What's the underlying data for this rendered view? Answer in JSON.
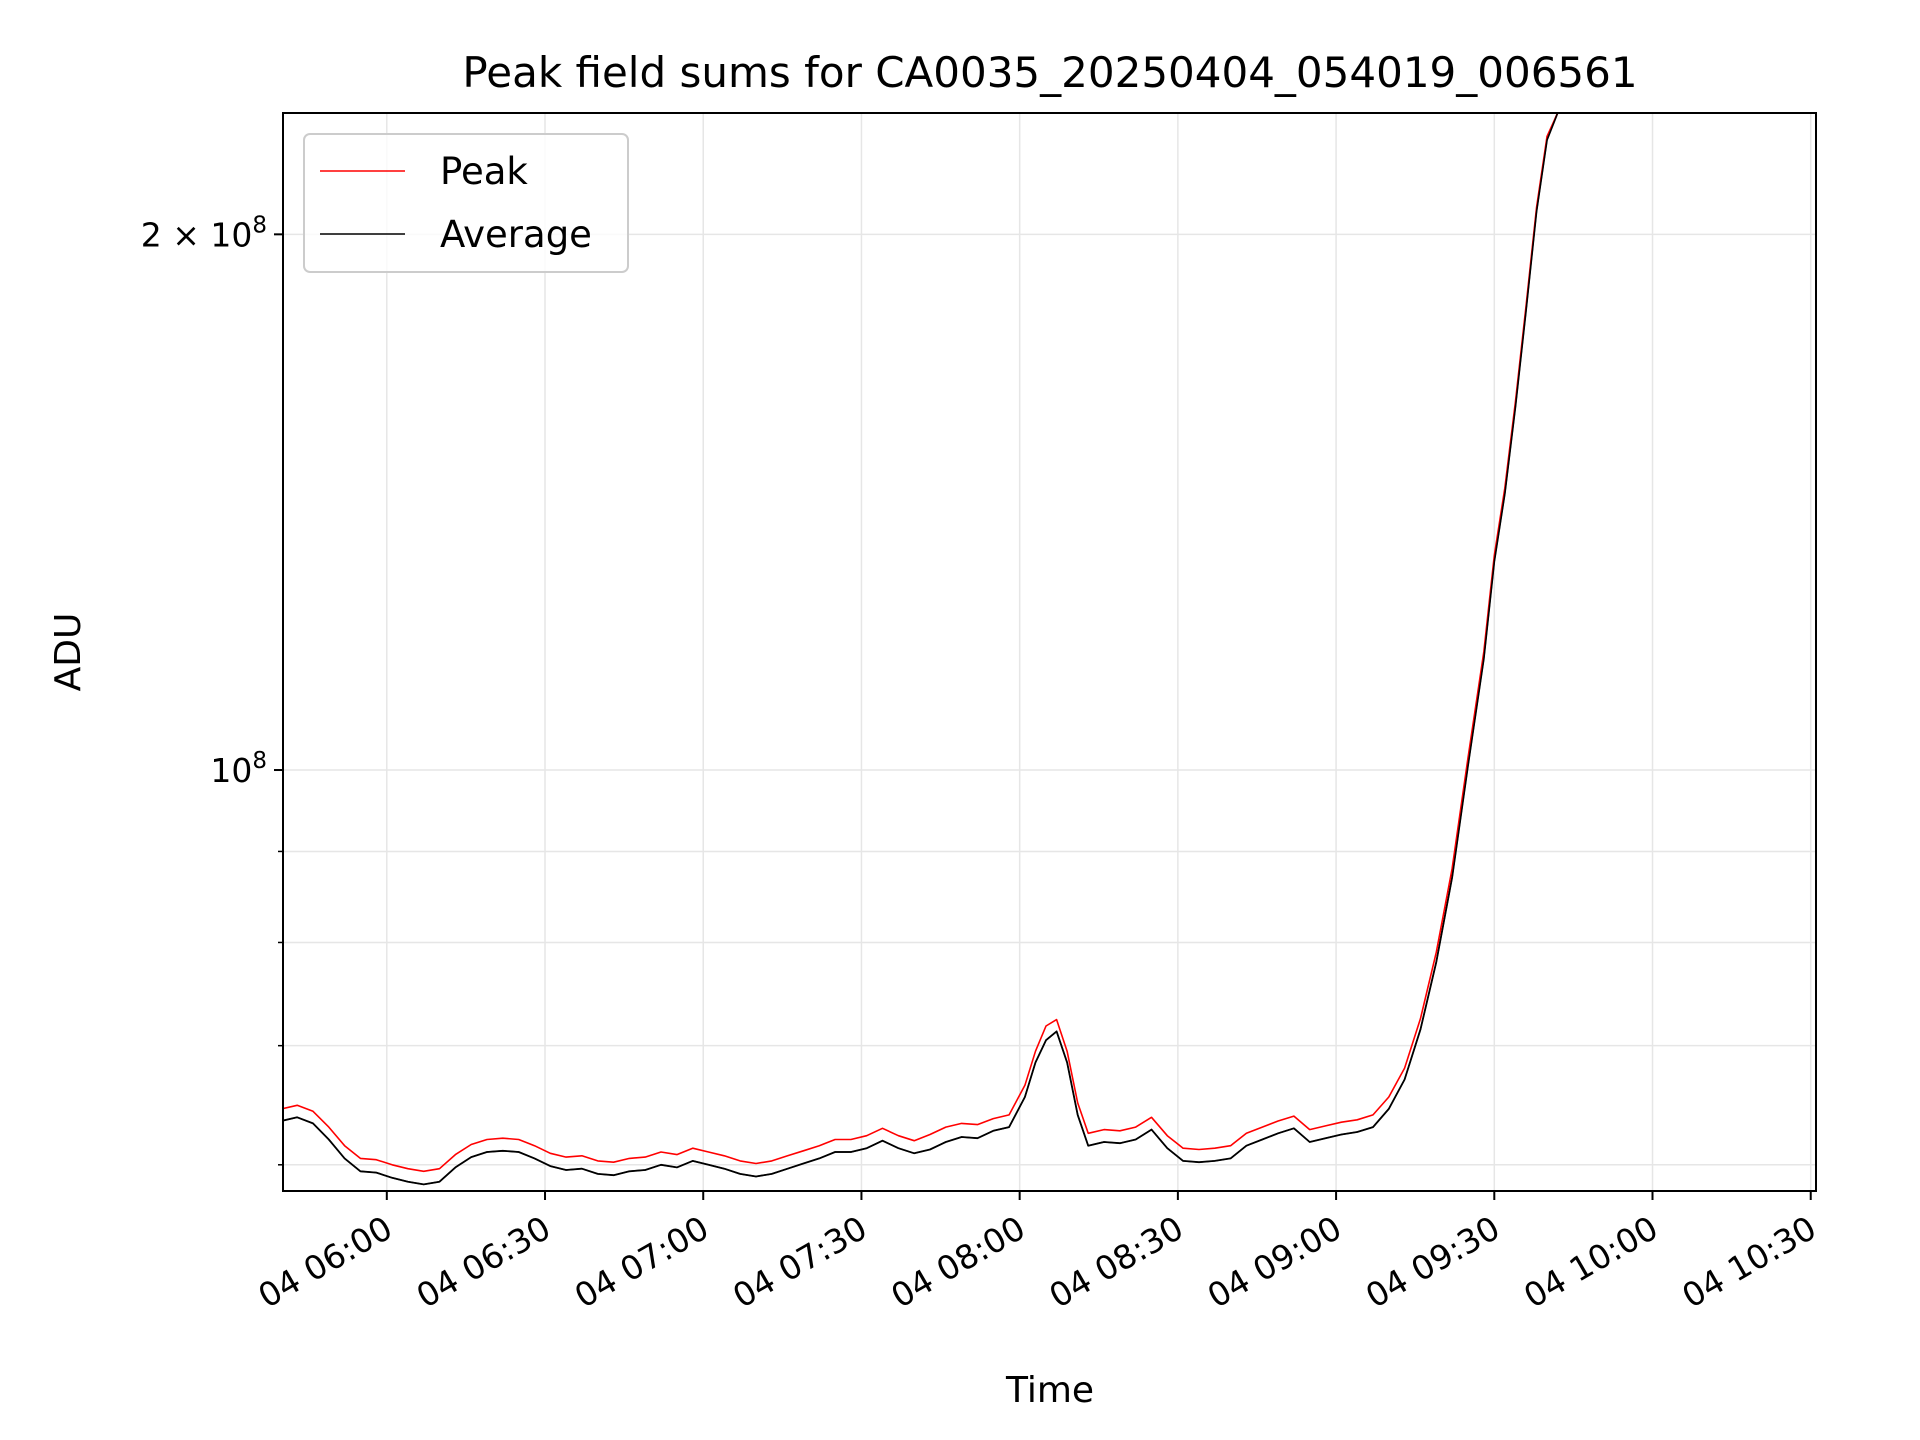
{
  "chart_data": {
    "type": "line",
    "title": "Peak field sums for CA0035_20250404_054019_006561",
    "xlabel": "Time",
    "ylabel": "ADU",
    "yscale": "log",
    "ylim": [
      58000000,
      234000000
    ],
    "xlim": [
      "2025-04-04 05:40:19",
      "2025-04-04 10:31:00"
    ],
    "grid": true,
    "legend_position": "top-left",
    "x_ticks": [
      {
        "t": "2025-04-04 06:00",
        "label": "04 06:00"
      },
      {
        "t": "2025-04-04 06:30",
        "label": "04 06:30"
      },
      {
        "t": "2025-04-04 07:00",
        "label": "04 07:00"
      },
      {
        "t": "2025-04-04 07:30",
        "label": "04 07:30"
      },
      {
        "t": "2025-04-04 08:00",
        "label": "04 08:00"
      },
      {
        "t": "2025-04-04 08:30",
        "label": "04 08:30"
      },
      {
        "t": "2025-04-04 09:00",
        "label": "04 09:00"
      },
      {
        "t": "2025-04-04 09:30",
        "label": "04 09:30"
      },
      {
        "t": "2025-04-04 10:00",
        "label": "04 10:00"
      },
      {
        "t": "2025-04-04 10:30",
        "label": "04 10:30"
      }
    ],
    "y_major_ticks": [
      {
        "value": 100000000,
        "base": "10",
        "exp": "8",
        "mantissa": ""
      },
      {
        "value": 200000000,
        "base": "10",
        "exp": "8",
        "mantissa": "2 × "
      }
    ],
    "y_minor_ticks": [
      60000000,
      70000000,
      80000000,
      90000000
    ],
    "series": [
      {
        "name": "Average",
        "color": "#000000",
        "points": [
          [
            "2025-04-04 05:40",
            63500000
          ],
          [
            "2025-04-04 05:43",
            63800000
          ],
          [
            "2025-04-04 05:46",
            63300000
          ],
          [
            "2025-04-04 05:49",
            62000000
          ],
          [
            "2025-04-04 05:52",
            60500000
          ],
          [
            "2025-04-04 05:55",
            59500000
          ],
          [
            "2025-04-04 05:58",
            59400000
          ],
          [
            "2025-04-04 06:01",
            59000000
          ],
          [
            "2025-04-04 06:04",
            58700000
          ],
          [
            "2025-04-04 06:07",
            58500000
          ],
          [
            "2025-04-04 06:10",
            58700000
          ],
          [
            "2025-04-04 06:13",
            59800000
          ],
          [
            "2025-04-04 06:16",
            60600000
          ],
          [
            "2025-04-04 06:19",
            61000000
          ],
          [
            "2025-04-04 06:22",
            61100000
          ],
          [
            "2025-04-04 06:25",
            61000000
          ],
          [
            "2025-04-04 06:28",
            60500000
          ],
          [
            "2025-04-04 06:31",
            59900000
          ],
          [
            "2025-04-04 06:34",
            59600000
          ],
          [
            "2025-04-04 06:37",
            59700000
          ],
          [
            "2025-04-04 06:40",
            59300000
          ],
          [
            "2025-04-04 06:43",
            59200000
          ],
          [
            "2025-04-04 06:46",
            59500000
          ],
          [
            "2025-04-04 06:49",
            59600000
          ],
          [
            "2025-04-04 06:52",
            60000000
          ],
          [
            "2025-04-04 06:55",
            59800000
          ],
          [
            "2025-04-04 06:58",
            60300000
          ],
          [
            "2025-04-04 07:01",
            60000000
          ],
          [
            "2025-04-04 07:04",
            59700000
          ],
          [
            "2025-04-04 07:07",
            59300000
          ],
          [
            "2025-04-04 07:10",
            59100000
          ],
          [
            "2025-04-04 07:13",
            59300000
          ],
          [
            "2025-04-04 07:16",
            59700000
          ],
          [
            "2025-04-04 07:19",
            60100000
          ],
          [
            "2025-04-04 07:22",
            60500000
          ],
          [
            "2025-04-04 07:25",
            61000000
          ],
          [
            "2025-04-04 07:28",
            61000000
          ],
          [
            "2025-04-04 07:31",
            61300000
          ],
          [
            "2025-04-04 07:34",
            61900000
          ],
          [
            "2025-04-04 07:37",
            61300000
          ],
          [
            "2025-04-04 07:40",
            60900000
          ],
          [
            "2025-04-04 07:43",
            61200000
          ],
          [
            "2025-04-04 07:46",
            61800000
          ],
          [
            "2025-04-04 07:49",
            62200000
          ],
          [
            "2025-04-04 07:52",
            62100000
          ],
          [
            "2025-04-04 07:55",
            62700000
          ],
          [
            "2025-04-04 07:58",
            63000000
          ],
          [
            "2025-04-04 08:01",
            65500000
          ],
          [
            "2025-04-04 08:03",
            68500000
          ],
          [
            "2025-04-04 08:05",
            70500000
          ],
          [
            "2025-04-04 08:07",
            71300000
          ],
          [
            "2025-04-04 08:09",
            68500000
          ],
          [
            "2025-04-04 08:11",
            64000000
          ],
          [
            "2025-04-04 08:13",
            61500000
          ],
          [
            "2025-04-04 08:16",
            61800000
          ],
          [
            "2025-04-04 08:19",
            61700000
          ],
          [
            "2025-04-04 08:22",
            62000000
          ],
          [
            "2025-04-04 08:25",
            62800000
          ],
          [
            "2025-04-04 08:28",
            61300000
          ],
          [
            "2025-04-04 08:31",
            60300000
          ],
          [
            "2025-04-04 08:34",
            60200000
          ],
          [
            "2025-04-04 08:37",
            60300000
          ],
          [
            "2025-04-04 08:40",
            60500000
          ],
          [
            "2025-04-04 08:43",
            61500000
          ],
          [
            "2025-04-04 08:46",
            62000000
          ],
          [
            "2025-04-04 08:49",
            62500000
          ],
          [
            "2025-04-04 08:52",
            62900000
          ],
          [
            "2025-04-04 08:55",
            61800000
          ],
          [
            "2025-04-04 08:58",
            62100000
          ],
          [
            "2025-04-04 09:01",
            62400000
          ],
          [
            "2025-04-04 09:04",
            62600000
          ],
          [
            "2025-04-04 09:07",
            63000000
          ],
          [
            "2025-04-04 09:10",
            64500000
          ],
          [
            "2025-04-04 09:13",
            67000000
          ],
          [
            "2025-04-04 09:16",
            71500000
          ],
          [
            "2025-04-04 09:19",
            78000000
          ],
          [
            "2025-04-04 09:22",
            87000000
          ],
          [
            "2025-04-04 09:25",
            100500000
          ],
          [
            "2025-04-04 09:28",
            115500000
          ],
          [
            "2025-04-04 09:30",
            131000000
          ],
          [
            "2025-04-04 09:32",
            143000000
          ],
          [
            "2025-04-04 09:34",
            160000000
          ],
          [
            "2025-04-04 09:36",
            181000000
          ],
          [
            "2025-04-04 09:38",
            206000000
          ],
          [
            "2025-04-04 09:40",
            226000000
          ],
          [
            "2025-04-04 09:42",
            234000000
          ],
          [
            "2025-04-04 09:44",
            234000000
          ]
        ]
      },
      {
        "name": "Peak",
        "color": "#ff0000",
        "points": [
          [
            "2025-04-04 05:40",
            64500000
          ],
          [
            "2025-04-04 05:43",
            64800000
          ],
          [
            "2025-04-04 05:46",
            64300000
          ],
          [
            "2025-04-04 05:49",
            63000000
          ],
          [
            "2025-04-04 05:52",
            61500000
          ],
          [
            "2025-04-04 05:55",
            60500000
          ],
          [
            "2025-04-04 05:58",
            60400000
          ],
          [
            "2025-04-04 06:01",
            60000000
          ],
          [
            "2025-04-04 06:04",
            59700000
          ],
          [
            "2025-04-04 06:07",
            59500000
          ],
          [
            "2025-04-04 06:10",
            59700000
          ],
          [
            "2025-04-04 06:13",
            60800000
          ],
          [
            "2025-04-04 06:16",
            61600000
          ],
          [
            "2025-04-04 06:19",
            62000000
          ],
          [
            "2025-04-04 06:22",
            62100000
          ],
          [
            "2025-04-04 06:25",
            62000000
          ],
          [
            "2025-04-04 06:28",
            61500000
          ],
          [
            "2025-04-04 06:31",
            60900000
          ],
          [
            "2025-04-04 06:34",
            60600000
          ],
          [
            "2025-04-04 06:37",
            60700000
          ],
          [
            "2025-04-04 06:40",
            60300000
          ],
          [
            "2025-04-04 06:43",
            60200000
          ],
          [
            "2025-04-04 06:46",
            60500000
          ],
          [
            "2025-04-04 06:49",
            60600000
          ],
          [
            "2025-04-04 06:52",
            61000000
          ],
          [
            "2025-04-04 06:55",
            60800000
          ],
          [
            "2025-04-04 06:58",
            61300000
          ],
          [
            "2025-04-04 07:01",
            61000000
          ],
          [
            "2025-04-04 07:04",
            60700000
          ],
          [
            "2025-04-04 07:07",
            60300000
          ],
          [
            "2025-04-04 07:10",
            60100000
          ],
          [
            "2025-04-04 07:13",
            60300000
          ],
          [
            "2025-04-04 07:16",
            60700000
          ],
          [
            "2025-04-04 07:19",
            61100000
          ],
          [
            "2025-04-04 07:22",
            61500000
          ],
          [
            "2025-04-04 07:25",
            62000000
          ],
          [
            "2025-04-04 07:28",
            62000000
          ],
          [
            "2025-04-04 07:31",
            62300000
          ],
          [
            "2025-04-04 07:34",
            62900000
          ],
          [
            "2025-04-04 07:37",
            62300000
          ],
          [
            "2025-04-04 07:40",
            61900000
          ],
          [
            "2025-04-04 07:43",
            62400000
          ],
          [
            "2025-04-04 07:46",
            63000000
          ],
          [
            "2025-04-04 07:49",
            63300000
          ],
          [
            "2025-04-04 07:52",
            63200000
          ],
          [
            "2025-04-04 07:55",
            63700000
          ],
          [
            "2025-04-04 07:58",
            64000000
          ],
          [
            "2025-04-04 08:01",
            66500000
          ],
          [
            "2025-04-04 08:03",
            69500000
          ],
          [
            "2025-04-04 08:05",
            71800000
          ],
          [
            "2025-04-04 08:07",
            72400000
          ],
          [
            "2025-04-04 08:09",
            69500000
          ],
          [
            "2025-04-04 08:11",
            65000000
          ],
          [
            "2025-04-04 08:13",
            62500000
          ],
          [
            "2025-04-04 08:16",
            62800000
          ],
          [
            "2025-04-04 08:19",
            62700000
          ],
          [
            "2025-04-04 08:22",
            63000000
          ],
          [
            "2025-04-04 08:25",
            63800000
          ],
          [
            "2025-04-04 08:28",
            62300000
          ],
          [
            "2025-04-04 08:31",
            61300000
          ],
          [
            "2025-04-04 08:34",
            61200000
          ],
          [
            "2025-04-04 08:37",
            61300000
          ],
          [
            "2025-04-04 08:40",
            61500000
          ],
          [
            "2025-04-04 08:43",
            62500000
          ],
          [
            "2025-04-04 08:46",
            63000000
          ],
          [
            "2025-04-04 08:49",
            63500000
          ],
          [
            "2025-04-04 08:52",
            63900000
          ],
          [
            "2025-04-04 08:55",
            62800000
          ],
          [
            "2025-04-04 08:58",
            63100000
          ],
          [
            "2025-04-04 09:01",
            63400000
          ],
          [
            "2025-04-04 09:04",
            63600000
          ],
          [
            "2025-04-04 09:07",
            64000000
          ],
          [
            "2025-04-04 09:10",
            65500000
          ],
          [
            "2025-04-04 09:13",
            68000000
          ],
          [
            "2025-04-04 09:16",
            72500000
          ],
          [
            "2025-04-04 09:19",
            79000000
          ],
          [
            "2025-04-04 09:22",
            88000000
          ],
          [
            "2025-04-04 09:25",
            101500000
          ],
          [
            "2025-04-04 09:28",
            116500000
          ],
          [
            "2025-04-04 09:30",
            132000000
          ],
          [
            "2025-04-04 09:32",
            144000000
          ],
          [
            "2025-04-04 09:34",
            161000000
          ],
          [
            "2025-04-04 09:36",
            182000000
          ],
          [
            "2025-04-04 09:38",
            207000000
          ],
          [
            "2025-04-04 09:40",
            227000000
          ],
          [
            "2025-04-04 09:42",
            234000000
          ],
          [
            "2025-04-04 09:44",
            234000000
          ]
        ]
      }
    ]
  }
}
